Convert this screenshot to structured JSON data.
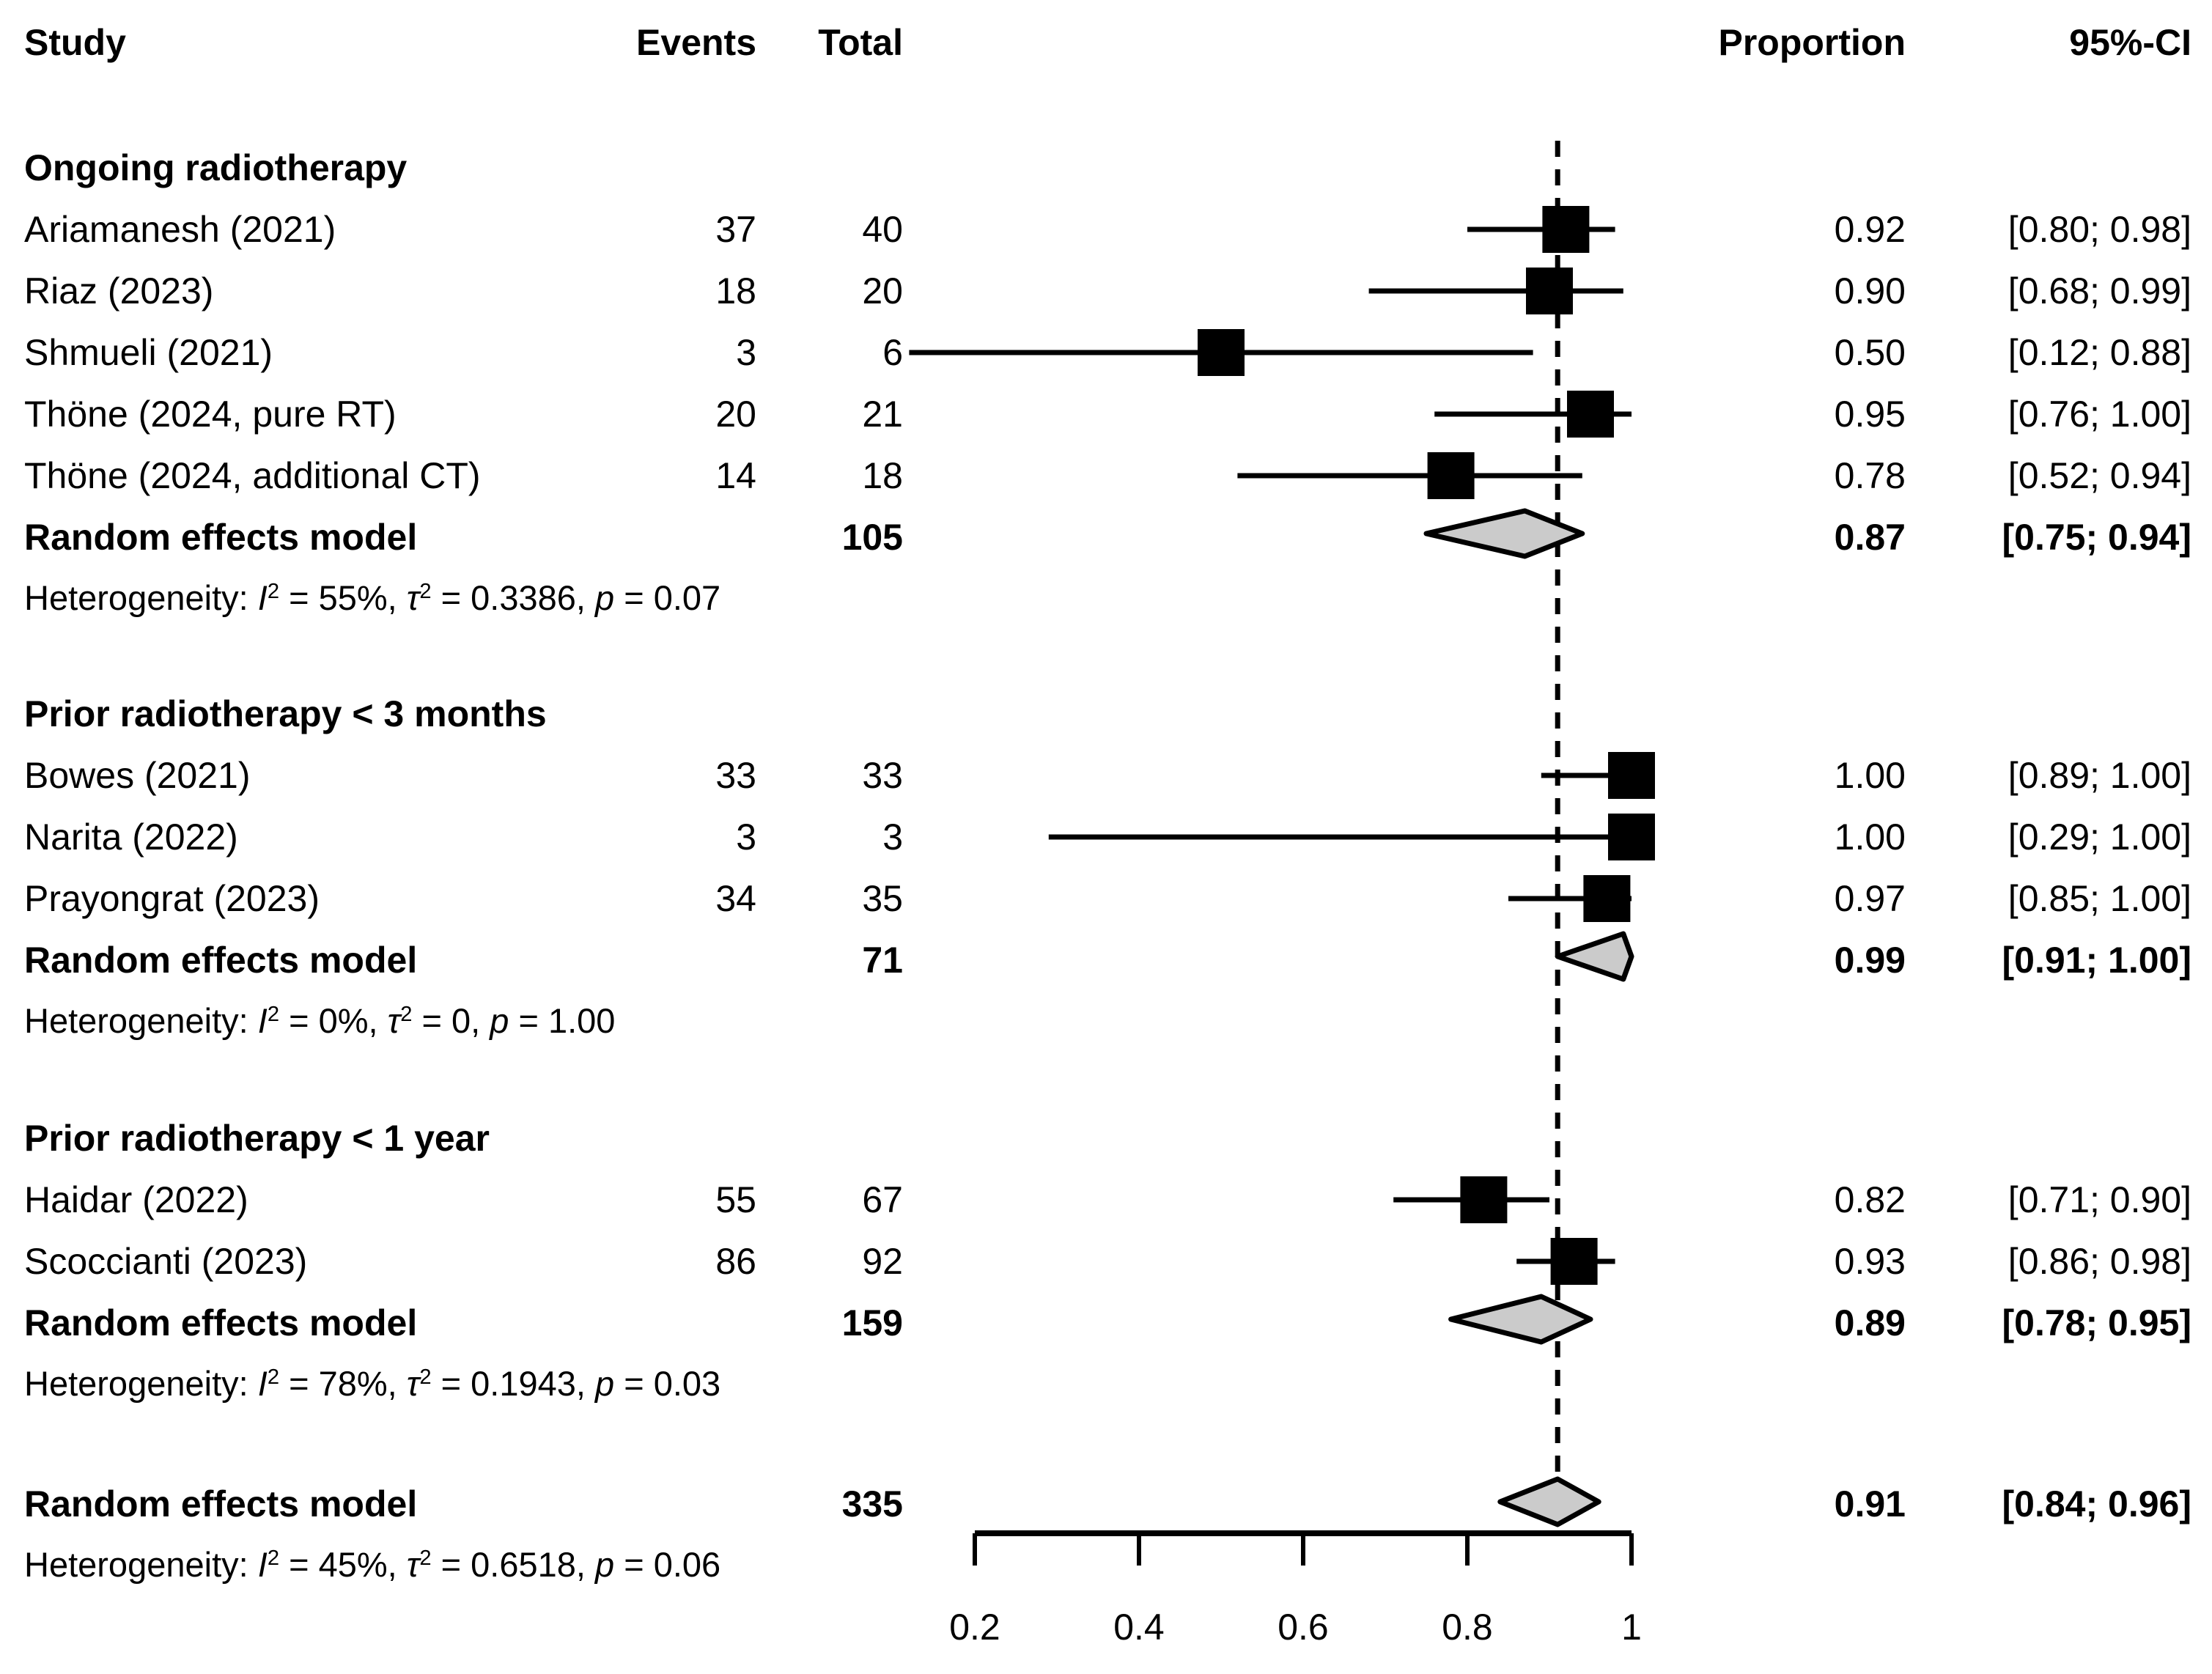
{
  "chart_data": {
    "type": "forest",
    "columns": {
      "study": "Study",
      "events": "Events",
      "total": "Total",
      "proportion": "Proportion",
      "ci": "95%-CI"
    },
    "xaxis": {
      "tick_labels": [
        "0.2",
        "0.4",
        "0.6",
        "0.8",
        "1"
      ],
      "tick_values": [
        0.2,
        0.4,
        0.6,
        0.8,
        1
      ],
      "range": [
        0.2,
        1
      ]
    },
    "reference_line": 0.91,
    "groups": [
      {
        "heading": "Ongoing radiotherapy",
        "studies": [
          {
            "label": "Ariamanesh (2021)",
            "events": "37",
            "total": "40",
            "proportion": "0.92",
            "ci": "[0.80; 0.98]",
            "est": 0.92,
            "lo": 0.8,
            "hi": 0.98
          },
          {
            "label": "Riaz (2023)",
            "events": "18",
            "total": "20",
            "proportion": "0.90",
            "ci": "[0.68; 0.99]",
            "est": 0.9,
            "lo": 0.68,
            "hi": 0.99
          },
          {
            "label": "Shmueli (2021)",
            "events": "3",
            "total": "6",
            "proportion": "0.50",
            "ci": "[0.12; 0.88]",
            "est": 0.5,
            "lo": 0.12,
            "hi": 0.88
          },
          {
            "label": "Thöne (2024, pure RT)",
            "events": "20",
            "total": "21",
            "proportion": "0.95",
            "ci": "[0.76; 1.00]",
            "est": 0.95,
            "lo": 0.76,
            "hi": 1.0
          },
          {
            "label": "Thöne (2024, additional CT)",
            "events": "14",
            "total": "18",
            "proportion": "0.78",
            "ci": "[0.52; 0.94]",
            "est": 0.78,
            "lo": 0.52,
            "hi": 0.94
          }
        ],
        "summary": {
          "label": "Random effects model",
          "total": "105",
          "proportion": "0.87",
          "ci": "[0.75; 0.94]",
          "est": 0.87,
          "lo": 0.75,
          "hi": 0.94
        },
        "heterogeneity": {
          "prefix": "Heterogeneity: ",
          "i2": "55%",
          "tau2": "0.3386",
          "p": "0.07"
        }
      },
      {
        "heading": "Prior radiotherapy < 3 months",
        "studies": [
          {
            "label": "Bowes (2021)",
            "events": "33",
            "total": "33",
            "proportion": "1.00",
            "ci": "[0.89; 1.00]",
            "est": 1.0,
            "lo": 0.89,
            "hi": 1.0
          },
          {
            "label": "Narita (2022)",
            "events": "3",
            "total": "3",
            "proportion": "1.00",
            "ci": "[0.29; 1.00]",
            "est": 1.0,
            "lo": 0.29,
            "hi": 1.0
          },
          {
            "label": "Prayongrat (2023)",
            "events": "34",
            "total": "35",
            "proportion": "0.97",
            "ci": "[0.85; 1.00]",
            "est": 0.97,
            "lo": 0.85,
            "hi": 1.0
          }
        ],
        "summary": {
          "label": "Random effects model",
          "total": "71",
          "proportion": "0.99",
          "ci": "[0.91; 1.00]",
          "est": 0.99,
          "lo": 0.91,
          "hi": 1.0
        },
        "heterogeneity": {
          "prefix": "Heterogeneity: ",
          "i2": "0%",
          "tau2": "0",
          "p": "1.00"
        }
      },
      {
        "heading": "Prior radiotherapy < 1 year",
        "studies": [
          {
            "label": "Haidar (2022)",
            "events": "55",
            "total": "67",
            "proportion": "0.82",
            "ci": "[0.71; 0.90]",
            "est": 0.82,
            "lo": 0.71,
            "hi": 0.9
          },
          {
            "label": "Scoccianti (2023)",
            "events": "86",
            "total": "92",
            "proportion": "0.93",
            "ci": "[0.86; 0.98]",
            "est": 0.93,
            "lo": 0.86,
            "hi": 0.98
          }
        ],
        "summary": {
          "label": "Random effects model",
          "total": "159",
          "proportion": "0.89",
          "ci": "[0.78; 0.95]",
          "est": 0.89,
          "lo": 0.78,
          "hi": 0.95
        },
        "heterogeneity": {
          "prefix": "Heterogeneity: ",
          "i2": "78%",
          "tau2": "0.1943",
          "p": "0.03"
        }
      }
    ],
    "overall": {
      "summary": {
        "label": "Random effects model",
        "total": "335",
        "proportion": "0.91",
        "ci": "[0.84; 0.96]",
        "est": 0.91,
        "lo": 0.84,
        "hi": 0.96
      },
      "heterogeneity": {
        "prefix": "Heterogeneity: ",
        "i2": "45%",
        "tau2": "0.6518",
        "p": "0.06"
      }
    },
    "colors": {
      "text": "#000000",
      "square": "#000000",
      "ci_line": "#000000",
      "diamond_fill": "#cbcbcb",
      "diamond_stroke": "#000000",
      "reference_line": "#000000",
      "axis": "#000000",
      "background": "#ffffff"
    }
  }
}
